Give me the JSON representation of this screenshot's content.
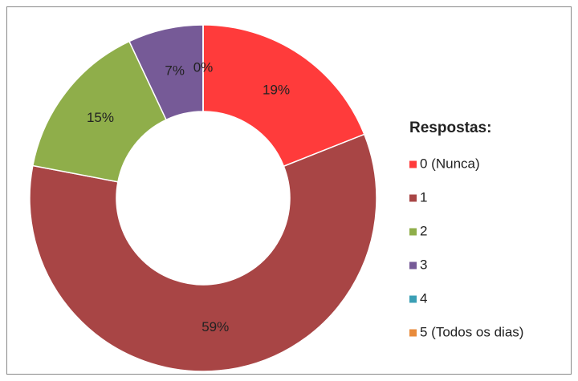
{
  "chart_data": {
    "type": "donut",
    "categories": [
      "0 (Nunca)",
      "1",
      "2",
      "3",
      "4",
      "5 (Todos os dias)"
    ],
    "values": [
      19,
      59,
      15,
      7,
      0,
      0
    ],
    "value_labels": [
      "19%",
      "59%",
      "15%",
      "7%",
      "0%",
      null
    ],
    "colors": [
      "#ff3b3b",
      "#a84545",
      "#8fae4a",
      "#765a97",
      "#3a9fb5",
      "#e88b3c"
    ],
    "legend_title": "Respostas:",
    "legend": "right"
  }
}
